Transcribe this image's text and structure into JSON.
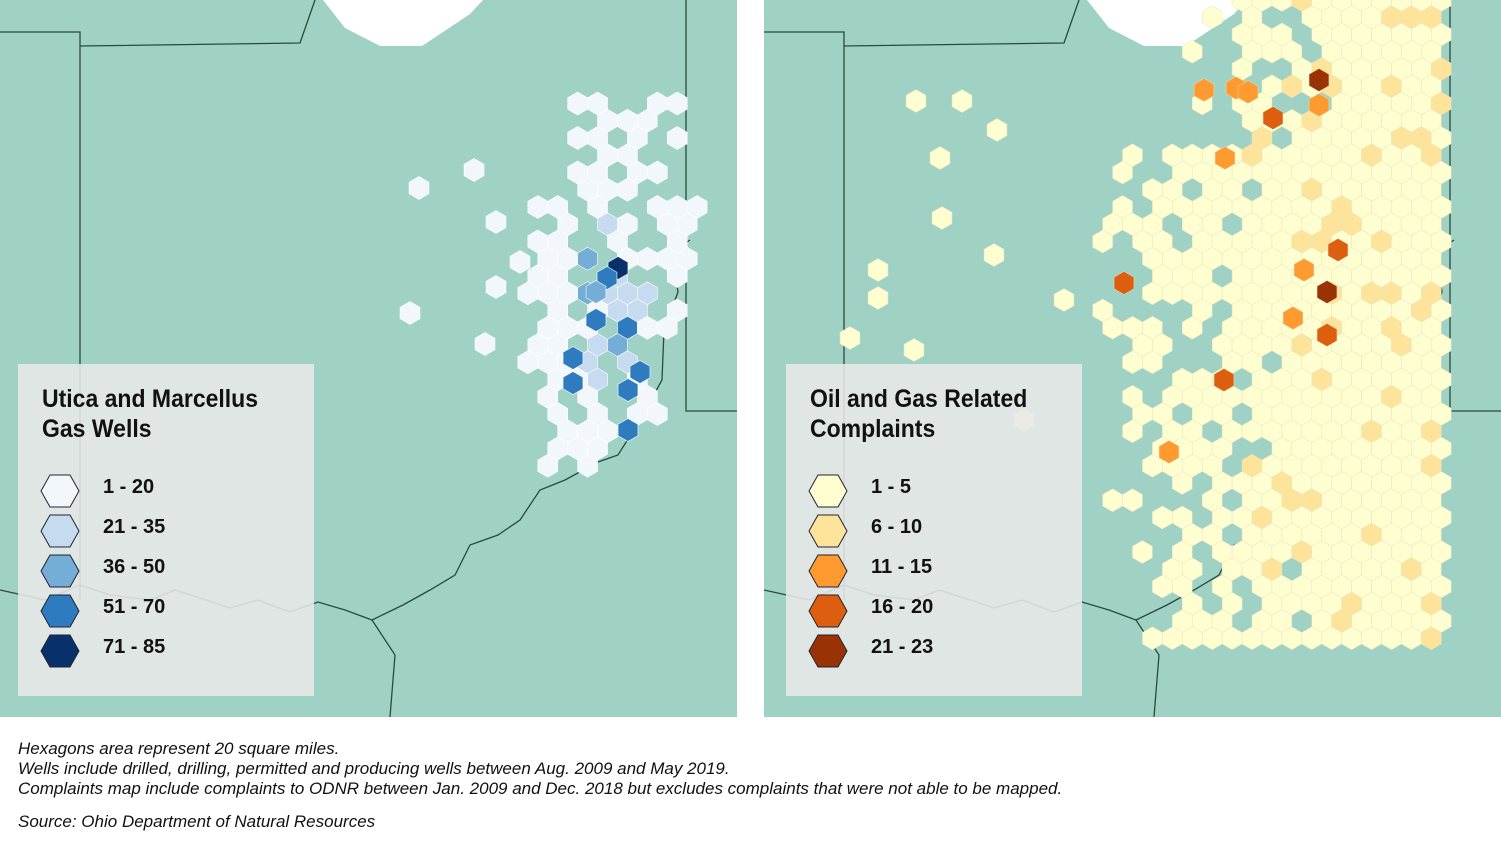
{
  "colors": {
    "land": "#9fd1c5",
    "lake": "#ffffff",
    "border": "#2a4a3a",
    "blue_scale": [
      "#f2f7fc",
      "#c6dbef",
      "#74add5",
      "#2e7bbf",
      "#08306b"
    ],
    "orange_scale": [
      "#fefed0",
      "#fee39a",
      "#fe9a2f",
      "#dd5e0e",
      "#993306"
    ]
  },
  "maps": [
    {
      "id": "wells",
      "legend_title": "Utica and Marcellus Gas Wells",
      "legend": [
        {
          "label": "1 - 20",
          "class": 0
        },
        {
          "label": "21 - 35",
          "class": 1
        },
        {
          "label": "36 - 50",
          "class": 2
        },
        {
          "label": "51 - 70",
          "class": 3
        },
        {
          "label": "71 - 85",
          "class": 4
        }
      ]
    },
    {
      "id": "complaints",
      "legend_title": "Oil and Gas Related Complaints",
      "legend": [
        {
          "label": "1 - 5",
          "class": 0
        },
        {
          "label": "6 - 10",
          "class": 1
        },
        {
          "label": "11 - 15",
          "class": 2
        },
        {
          "label": "16 - 20",
          "class": 3
        },
        {
          "label": "21 - 23",
          "class": 4
        }
      ]
    }
  ],
  "notes": [
    "Hexagons area represent 20 square miles.",
    "Wells include drilled, drilling, permitted and producing wells between Aug. 2009 and May 2019.",
    "Complaints map include complaints to ODNR between Jan. 2009 and Dec. 2018 but excludes complaints that were not able to be mapped."
  ],
  "source": "Source: Ohio Department of Natural Resources"
}
